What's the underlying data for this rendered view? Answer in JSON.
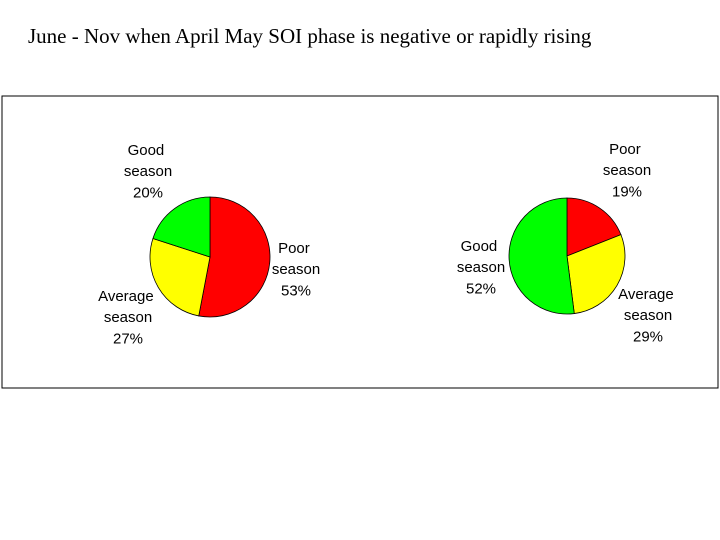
{
  "title": "June - Nov when April May SOI phase is negative or rapidly rising",
  "chart_data": [
    {
      "type": "pie",
      "categories": [
        "Poor season",
        "Average season",
        "Good season"
      ],
      "values": [
        53,
        27,
        20
      ],
      "value_labels": [
        "53%",
        "27%",
        "20%"
      ],
      "colors": [
        "#ff0000",
        "#ffff00",
        "#00ff00"
      ]
    },
    {
      "type": "pie",
      "categories": [
        "Poor season",
        "Average season",
        "Good season"
      ],
      "values": [
        19,
        29,
        52
      ],
      "value_labels": [
        "19%",
        "29%",
        "52%"
      ],
      "colors": [
        "#ff0000",
        "#ffff00",
        "#00ff00"
      ]
    }
  ]
}
